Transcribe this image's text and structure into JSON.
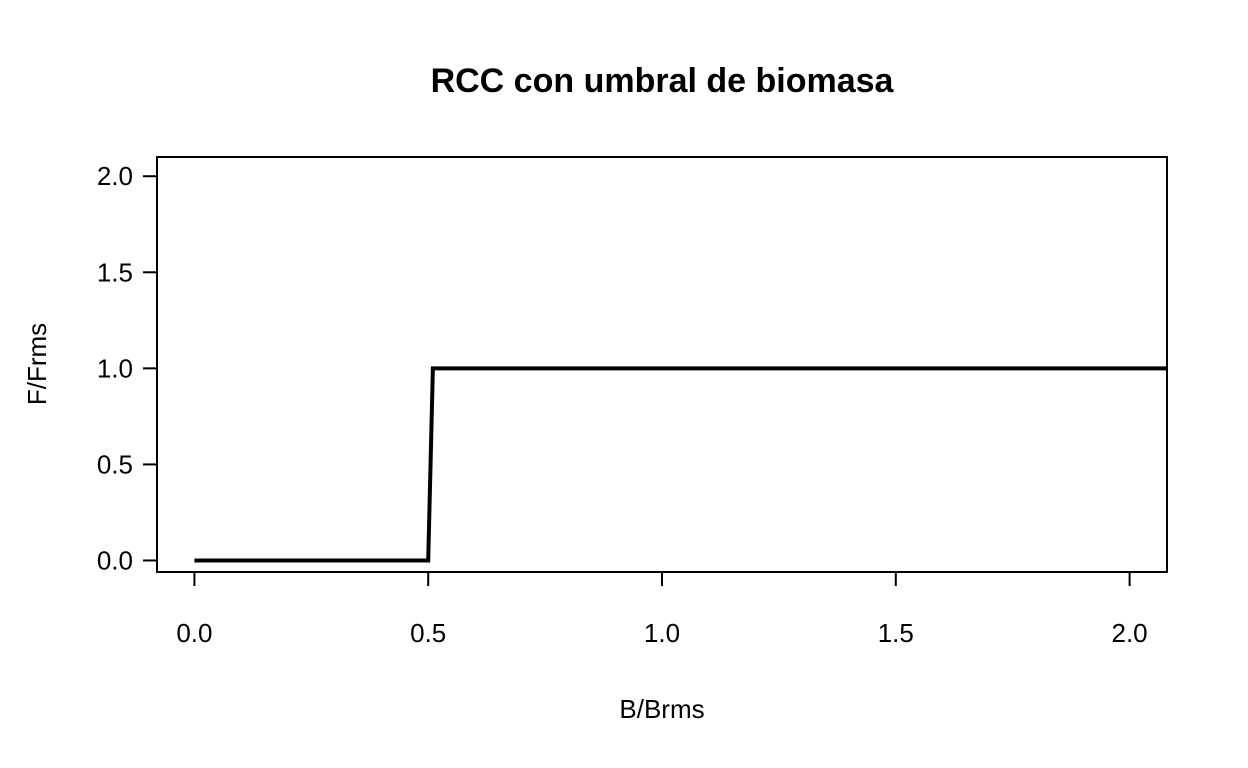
{
  "chart_data": {
    "type": "line",
    "title": "RCC con umbral de biomasa",
    "xlabel": "B/Brms",
    "ylabel": "F/Frms",
    "xlim": [
      -0.08,
      2.08
    ],
    "ylim": [
      -0.06,
      2.1
    ],
    "xticks": [
      0.0,
      0.5,
      1.0,
      1.5,
      2.0
    ],
    "yticks": [
      0.0,
      0.5,
      1.0,
      1.5,
      2.0
    ],
    "xtick_labels": [
      "0.0",
      "0.5",
      "1.0",
      "1.5",
      "2.0"
    ],
    "ytick_labels": [
      "0.0",
      "0.5",
      "1.0",
      "1.5",
      "2.0"
    ],
    "grid": false,
    "legend": "none",
    "series": [
      {
        "color": "#000000",
        "x": [
          0.0,
          0.5,
          0.51,
          2.08
        ],
        "y": [
          0.0,
          0.0,
          1.0,
          1.0
        ]
      }
    ]
  }
}
